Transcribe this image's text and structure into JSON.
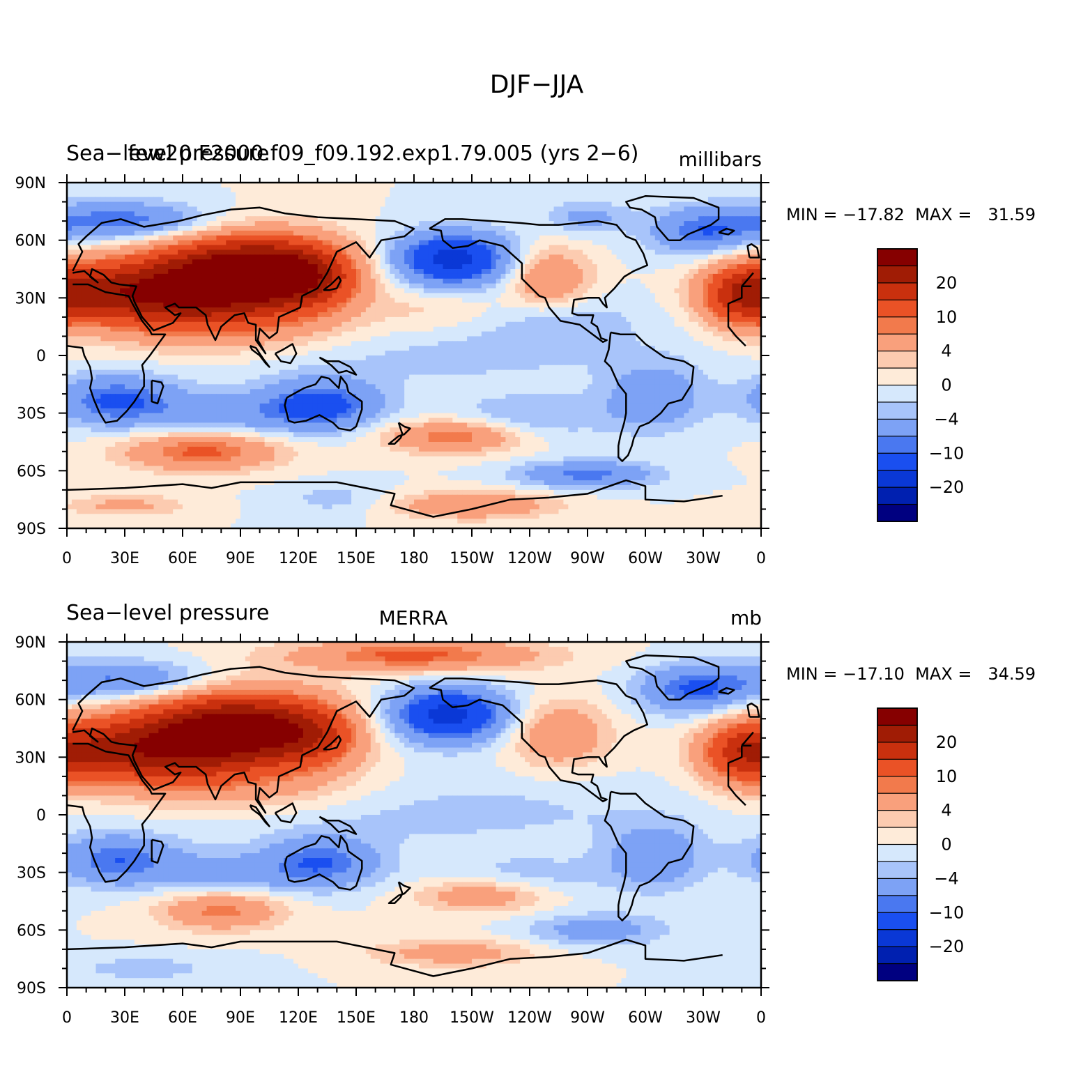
{
  "figure_title": "DJF−JJA",
  "panels": [
    {
      "title_left": "Sea−level pressure",
      "title_center": "few20.F2000.f09_f09.192.exp1.79.005 (yrs 2−6)",
      "title_right": "millibars",
      "stats_text": "MIN = −17.82  MAX =   31.59"
    },
    {
      "title_left": "Sea−level pressure",
      "title_center": "MERRA",
      "title_right": "mb",
      "stats_text": "MIN = −17.10  MAX =   34.59"
    }
  ],
  "colorbar": {
    "levels": [
      -25,
      -20,
      -15,
      -10,
      -8,
      -4,
      -2,
      0,
      2,
      4,
      8,
      10,
      15,
      20,
      25
    ],
    "colors": [
      "#000080",
      "#0020b0",
      "#0a38d6",
      "#1a4ff0",
      "#4a78f0",
      "#7da2f5",
      "#a8c4fa",
      "#d6e8fc",
      "#feebd9",
      "#fccbb0",
      "#f9a07c",
      "#f27a4c",
      "#ea5226",
      "#c9300e",
      "#a01c05",
      "#860000"
    ],
    "label_texts": [
      "20",
      "10",
      "4",
      "0",
      "−4",
      "−10",
      "−20"
    ]
  },
  "axes": {
    "x_tick_labels": [
      "0",
      "30E",
      "60E",
      "90E",
      "120E",
      "150E",
      "180",
      "150W",
      "120W",
      "90W",
      "60W",
      "30W",
      "0"
    ],
    "y_tick_labels": [
      "90N",
      "60N",
      "30N",
      "0",
      "30S",
      "60S",
      "90S"
    ]
  },
  "chart_data": [
    {
      "type": "heatmap",
      "title": "DJF−JJA",
      "dataset": "few20.F2000.f09_f09.192.exp1.79.005 (yrs 2−6)",
      "variable": "Sea−level pressure",
      "units": "millibars",
      "min": -17.82,
      "max": 31.59,
      "x_range": [
        0,
        360
      ],
      "y_range": [
        -90,
        90
      ],
      "features": [
        {
          "lon": 97,
          "lat": 44,
          "value": 26,
          "sx": 30,
          "sy": 13
        },
        {
          "lon": 62,
          "lat": 32,
          "value": 18,
          "sx": 36,
          "sy": 15
        },
        {
          "lon": 20,
          "lat": 33,
          "value": 12,
          "sx": 28,
          "sy": 11
        },
        {
          "lon": 128,
          "lat": 40,
          "value": 10,
          "sx": 18,
          "sy": 12
        },
        {
          "lon": 105,
          "lat": 12,
          "value": 4,
          "sx": 45,
          "sy": 10
        },
        {
          "lon": 195,
          "lat": 24,
          "value": 3,
          "sx": 25,
          "sy": 9
        },
        {
          "lon": 350,
          "lat": 32,
          "value": 14,
          "sx": 15,
          "sy": 12
        },
        {
          "lon": 250,
          "lat": 40,
          "value": 9,
          "sx": 15,
          "sy": 11
        },
        {
          "lon": 200,
          "lat": 50,
          "value": -17,
          "sx": 22,
          "sy": 10
        },
        {
          "lon": 28,
          "lat": 70,
          "value": -10,
          "sx": 32,
          "sy": 7
        },
        {
          "lon": 330,
          "lat": 64,
          "value": -9,
          "sx": 20,
          "sy": 9
        },
        {
          "lon": 270,
          "lat": 72,
          "value": -5,
          "sx": 15,
          "sy": 6
        },
        {
          "lon": 25,
          "lat": -23,
          "value": -10,
          "sx": 22,
          "sy": 9
        },
        {
          "lon": 133,
          "lat": -25,
          "value": -10,
          "sx": 20,
          "sy": 9
        },
        {
          "lon": 305,
          "lat": -22,
          "value": -7,
          "sx": 18,
          "sy": 12
        },
        {
          "lon": 180,
          "lat": 2,
          "value": -3,
          "sx": 90,
          "sy": 13
        },
        {
          "lon": 255,
          "lat": 20,
          "value": -3,
          "sx": 30,
          "sy": 10
        },
        {
          "lon": 90,
          "lat": -30,
          "value": -6,
          "sx": 40,
          "sy": 8
        },
        {
          "lon": 240,
          "lat": -32,
          "value": -4,
          "sx": 30,
          "sy": 8
        },
        {
          "lon": 70,
          "lat": -50,
          "value": 11,
          "sx": 28,
          "sy": 7
        },
        {
          "lon": 200,
          "lat": -42,
          "value": 10,
          "sx": 24,
          "sy": 6
        },
        {
          "lon": 270,
          "lat": -62,
          "value": -9,
          "sx": 25,
          "sy": 5
        },
        {
          "lon": 210,
          "lat": -78,
          "value": 8,
          "sx": 30,
          "sy": 5
        },
        {
          "lon": 140,
          "lat": -75,
          "value": -3,
          "sx": 20,
          "sy": 6
        },
        {
          "lon": 30,
          "lat": -78,
          "value": 5,
          "sx": 22,
          "sy": 4
        }
      ]
    },
    {
      "type": "heatmap",
      "title": "DJF−JJA",
      "dataset": "MERRA",
      "variable": "Sea−level pressure",
      "units": "mb",
      "min": -17.1,
      "max": 34.59,
      "x_range": [
        0,
        360
      ],
      "y_range": [
        -90,
        90
      ],
      "features": [
        {
          "lon": 92,
          "lat": 46,
          "value": 22,
          "sx": 32,
          "sy": 13
        },
        {
          "lon": 60,
          "lat": 35,
          "value": 16,
          "sx": 36,
          "sy": 15
        },
        {
          "lon": 20,
          "lat": 33,
          "value": 11,
          "sx": 28,
          "sy": 11
        },
        {
          "lon": 180,
          "lat": 83,
          "value": 11,
          "sx": 45,
          "sy": 6
        },
        {
          "lon": 128,
          "lat": 40,
          "value": 9,
          "sx": 18,
          "sy": 12
        },
        {
          "lon": 105,
          "lat": 12,
          "value": 4,
          "sx": 45,
          "sy": 10
        },
        {
          "lon": 350,
          "lat": 32,
          "value": 12,
          "sx": 15,
          "sy": 12
        },
        {
          "lon": 255,
          "lat": 42,
          "value": 8,
          "sx": 18,
          "sy": 12
        },
        {
          "lon": 198,
          "lat": 52,
          "value": -17,
          "sx": 22,
          "sy": 10
        },
        {
          "lon": 28,
          "lat": 70,
          "value": -9,
          "sx": 32,
          "sy": 7
        },
        {
          "lon": 325,
          "lat": 65,
          "value": -10,
          "sx": 20,
          "sy": 9
        },
        {
          "lon": 25,
          "lat": -23,
          "value": -9,
          "sx": 22,
          "sy": 9
        },
        {
          "lon": 133,
          "lat": -24,
          "value": -8,
          "sx": 20,
          "sy": 9
        },
        {
          "lon": 305,
          "lat": -22,
          "value": -7,
          "sx": 18,
          "sy": 12
        },
        {
          "lon": 180,
          "lat": 2,
          "value": -3,
          "sx": 90,
          "sy": 13
        },
        {
          "lon": 90,
          "lat": -30,
          "value": -5,
          "sx": 40,
          "sy": 8
        },
        {
          "lon": 240,
          "lat": -32,
          "value": -3,
          "sx": 30,
          "sy": 8
        },
        {
          "lon": 80,
          "lat": -50,
          "value": 9,
          "sx": 22,
          "sy": 7
        },
        {
          "lon": 215,
          "lat": -42,
          "value": 7,
          "sx": 24,
          "sy": 6
        },
        {
          "lon": 275,
          "lat": -60,
          "value": -6,
          "sx": 25,
          "sy": 6
        },
        {
          "lon": 200,
          "lat": -72,
          "value": 6,
          "sx": 30,
          "sy": 5
        },
        {
          "lon": 40,
          "lat": -80,
          "value": -3,
          "sx": 30,
          "sy": 5
        }
      ]
    }
  ]
}
